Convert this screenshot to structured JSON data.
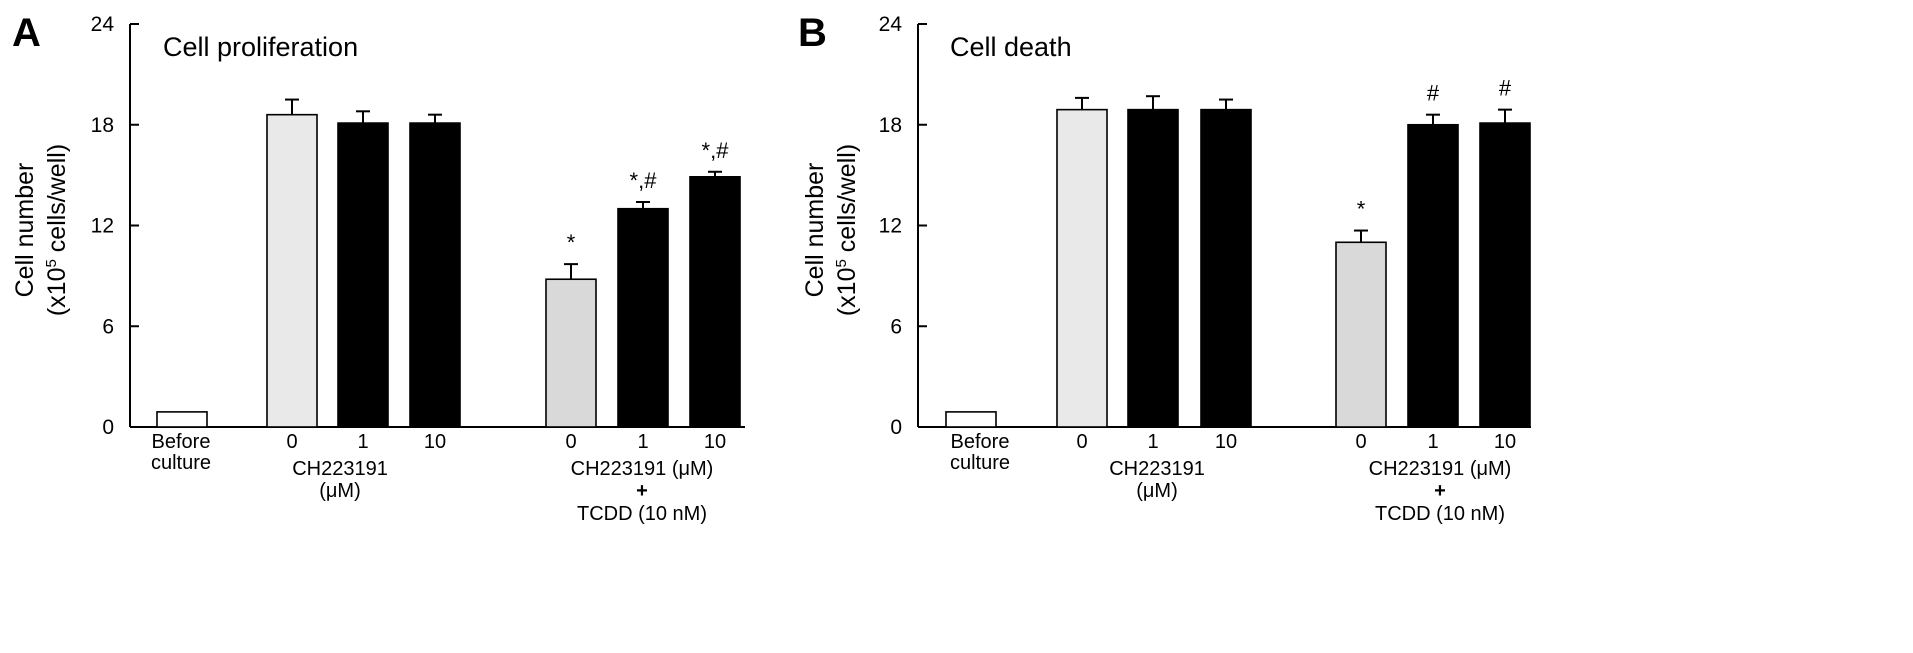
{
  "chart_data": [
    {
      "type": "bar",
      "panel": "A",
      "title": "Cell proliferation",
      "ylabel": [
        "Cell number",
        "(x10",
        "5",
        " cells/well)"
      ],
      "ylim": [
        0,
        24
      ],
      "yticks": [
        0,
        6,
        12,
        18,
        24
      ],
      "group_labels": [
        [
          "Before",
          "culture"
        ],
        [
          "CH223191",
          "(μM)"
        ],
        [
          "CH223191 (μM)",
          "+",
          "TCDD  (10 nM)"
        ]
      ],
      "bars": [
        {
          "tick": "",
          "value": 0.9,
          "error": 0,
          "fill": "#ffffff",
          "annotation": ""
        },
        {
          "tick": "0",
          "value": 18.6,
          "error": 0.9,
          "fill": "#e9e9e9",
          "annotation": ""
        },
        {
          "tick": "1",
          "value": 18.1,
          "error": 0.7,
          "fill": "#000000",
          "annotation": ""
        },
        {
          "tick": "10",
          "value": 18.1,
          "error": 0.5,
          "fill": "#000000",
          "annotation": ""
        },
        {
          "tick": "0",
          "value": 8.8,
          "error": 0.9,
          "fill": "#d9d9d9",
          "annotation": "*"
        },
        {
          "tick": "1",
          "value": 13.0,
          "error": 0.4,
          "fill": "#000000",
          "annotation": "*,#"
        },
        {
          "tick": "10",
          "value": 14.9,
          "error": 0.3,
          "fill": "#000000",
          "annotation": "*,#"
        }
      ]
    },
    {
      "type": "bar",
      "panel": "B",
      "title": "Cell death",
      "ylabel": [
        "Cell number",
        "(x10",
        "5",
        " cells/well)"
      ],
      "ylim": [
        0,
        24
      ],
      "yticks": [
        0,
        6,
        12,
        18,
        24
      ],
      "group_labels": [
        [
          "Before",
          "culture"
        ],
        [
          "CH223191",
          "(μM)"
        ],
        [
          "CH223191 (μM)",
          "+",
          "TCDD (10 nM)"
        ]
      ],
      "bars": [
        {
          "tick": "",
          "value": 0.9,
          "error": 0,
          "fill": "#ffffff",
          "annotation": ""
        },
        {
          "tick": "0",
          "value": 18.9,
          "error": 0.7,
          "fill": "#e9e9e9",
          "annotation": ""
        },
        {
          "tick": "1",
          "value": 18.9,
          "error": 0.8,
          "fill": "#000000",
          "annotation": ""
        },
        {
          "tick": "10",
          "value": 18.9,
          "error": 0.6,
          "fill": "#000000",
          "annotation": ""
        },
        {
          "tick": "0",
          "value": 11.0,
          "error": 0.7,
          "fill": "#d9d9d9",
          "annotation": "*"
        },
        {
          "tick": "1",
          "value": 18.0,
          "error": 0.6,
          "fill": "#000000",
          "annotation": "#"
        },
        {
          "tick": "10",
          "value": 18.1,
          "error": 0.8,
          "fill": "#000000",
          "annotation": "#"
        }
      ]
    }
  ]
}
